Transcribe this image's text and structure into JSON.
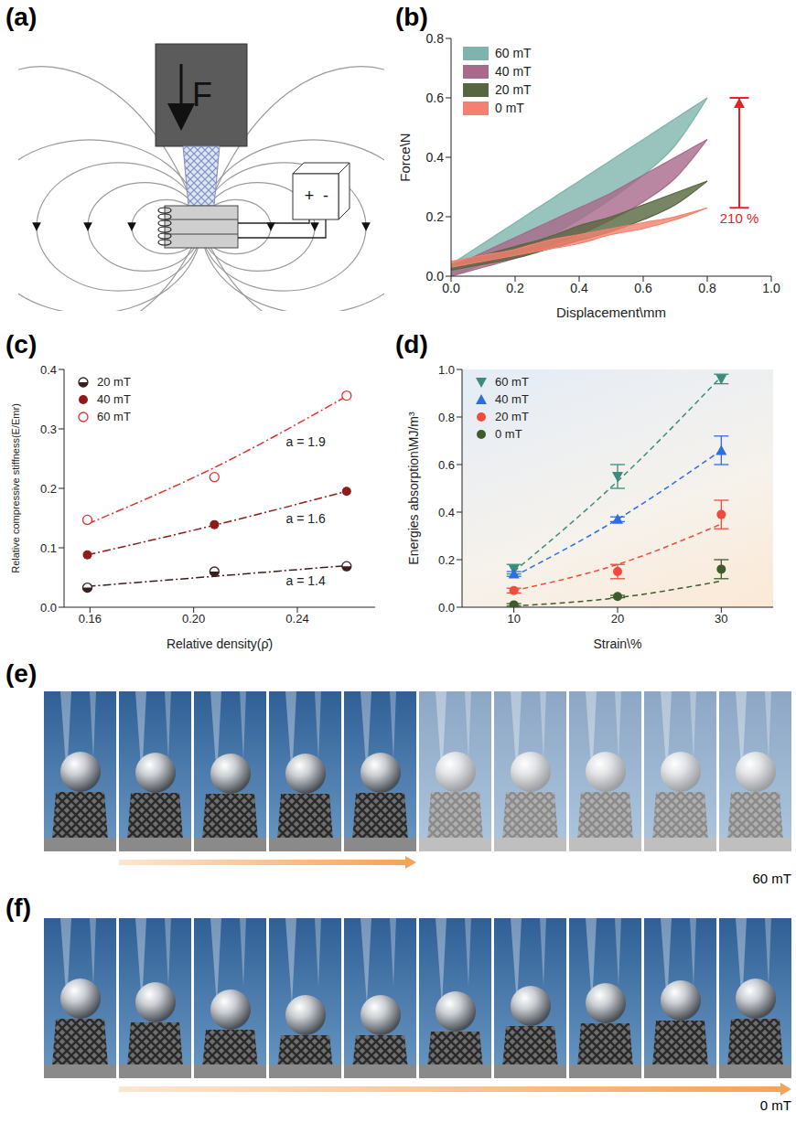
{
  "panel_labels": [
    "(a)",
    "(b)",
    "(c)",
    "(d)",
    "(e)",
    "(f)"
  ],
  "diagram": {
    "force_label": "F",
    "power_labels": [
      "+",
      "-"
    ]
  },
  "chart_data": [
    {
      "type": "area",
      "x_label": "Displacement\\mm",
      "y_label": "Force\\N",
      "xlim": [
        0,
        1.0
      ],
      "xticks": [
        {
          "value": 0,
          "label": "0.0"
        },
        0.2,
        0.4,
        0.6,
        0.8,
        {
          "value": 1,
          "label": "1.0"
        }
      ],
      "ylim": [
        0,
        0.8
      ],
      "yticks": [
        {
          "value": 0,
          "label": "0.0"
        },
        0.2,
        0.4,
        0.6,
        0.8
      ],
      "legend": "upper left",
      "x": [
        0,
        0.1,
        0.2,
        0.3,
        0.4,
        0.5,
        0.6,
        0.7,
        0.8
      ],
      "series": [
        {
          "name": "60 mT",
          "color": "#7fb4ac",
          "values": [
            0.04,
            0.11,
            0.18,
            0.25,
            0.32,
            0.39,
            0.46,
            0.53,
            0.6
          ],
          "unloading": [
            0.0,
            0.04,
            0.08,
            0.13,
            0.19,
            0.26,
            0.34,
            0.44,
            0.6
          ]
        },
        {
          "name": "40 mT",
          "color": "#a8698a",
          "values": [
            0.03,
            0.08,
            0.13,
            0.18,
            0.23,
            0.28,
            0.34,
            0.4,
            0.46
          ],
          "unloading": [
            0.0,
            0.03,
            0.06,
            0.1,
            0.14,
            0.19,
            0.25,
            0.33,
            0.46
          ]
        },
        {
          "name": "20 mT",
          "color": "#56663f",
          "values": [
            0.04,
            0.07,
            0.1,
            0.13,
            0.17,
            0.2,
            0.24,
            0.28,
            0.32
          ],
          "unloading": [
            0.02,
            0.04,
            0.06,
            0.09,
            0.12,
            0.15,
            0.19,
            0.24,
            0.32
          ]
        },
        {
          "name": "0 mT",
          "color": "#f5806f",
          "values": [
            0.05,
            0.07,
            0.09,
            0.12,
            0.14,
            0.16,
            0.18,
            0.2,
            0.23
          ],
          "unloading": [
            0.03,
            0.05,
            0.07,
            0.09,
            0.11,
            0.14,
            0.16,
            0.19,
            0.23
          ]
        }
      ],
      "annotations": [
        {
          "text": "210 %"
        }
      ]
    },
    {
      "type": "scatter",
      "x_label": "Relative density(ρ̄)",
      "y_label": "Relative compressive stiffness(E/Emr)",
      "xlim": [
        0.15,
        0.27
      ],
      "xticks": [
        0.16,
        {
          "value": 0.2,
          "label": "0.20"
        },
        0.24
      ],
      "ylim": [
        0,
        0.4
      ],
      "yticks": [
        {
          "value": 0,
          "label": "0.0"
        },
        0.1,
        0.2,
        0.3,
        0.4
      ],
      "legend": "upper left",
      "line_style": "dashdot",
      "x": [
        0.159,
        0.208,
        0.259
      ],
      "series": [
        {
          "name": "20 mT",
          "color": "#3b1e1e",
          "marker": "half-circle",
          "values": [
            0.033,
            0.06,
            0.069
          ],
          "fit": [
            0.035,
            0.052,
            0.07
          ],
          "annotation": "a = 1.4"
        },
        {
          "name": "40 mT",
          "color": "#8e1b1b",
          "marker": "circle",
          "values": [
            0.088,
            0.139,
            0.195
          ],
          "fit": [
            0.088,
            0.138,
            0.195
          ],
          "annotation": "a = 1.6"
        },
        {
          "name": "60 mT",
          "color": "#e5312f",
          "marker": "open-circle",
          "values": [
            0.147,
            0.219,
            0.356
          ],
          "fit": [
            0.14,
            0.235,
            0.355
          ],
          "annotation": "a = 1.9"
        }
      ]
    },
    {
      "type": "scatter",
      "x_label": "Strain\\%",
      "y_label": "Energies absorption\\MJ/m³",
      "xlim": [
        5,
        35
      ],
      "xticks": [
        10,
        20,
        30
      ],
      "ylim": [
        0,
        1.0
      ],
      "yticks": [
        {
          "value": 0,
          "label": "0.0"
        },
        0.2,
        0.4,
        0.6,
        0.8,
        {
          "value": 1,
          "label": "1.0"
        }
      ],
      "legend": "upper left",
      "line_style": "dashed",
      "x": [
        10,
        20,
        30
      ],
      "series": [
        {
          "name": "60 mT",
          "color": "#3c8b7b",
          "marker": "triangle-down",
          "values": [
            0.16,
            0.55,
            0.96
          ],
          "errors": [
            0.02,
            0.05,
            0.02
          ],
          "fit": [
            0.15,
            0.53,
            0.97
          ]
        },
        {
          "name": "40 mT",
          "color": "#2d6ee0",
          "marker": "triangle",
          "values": [
            0.14,
            0.37,
            0.66
          ],
          "errors": [
            0.01,
            0.01,
            0.06
          ],
          "fit": [
            0.13,
            0.37,
            0.66
          ]
        },
        {
          "name": "20 mT",
          "color": "#f04b3b",
          "marker": "circle",
          "values": [
            0.07,
            0.15,
            0.39
          ],
          "errors": [
            0.01,
            0.03,
            0.06
          ],
          "fit": [
            0.07,
            0.18,
            0.35
          ]
        },
        {
          "name": "0 mT",
          "color": "#3d5c2c",
          "marker": "circle",
          "values": [
            0.01,
            0.045,
            0.16
          ],
          "errors": [
            0.005,
            0.005,
            0.04
          ],
          "fit": [
            0.005,
            0.04,
            0.11
          ]
        }
      ]
    }
  ],
  "image_strips": [
    {
      "label": "60 mT"
    },
    {
      "label": "0 mT"
    }
  ]
}
